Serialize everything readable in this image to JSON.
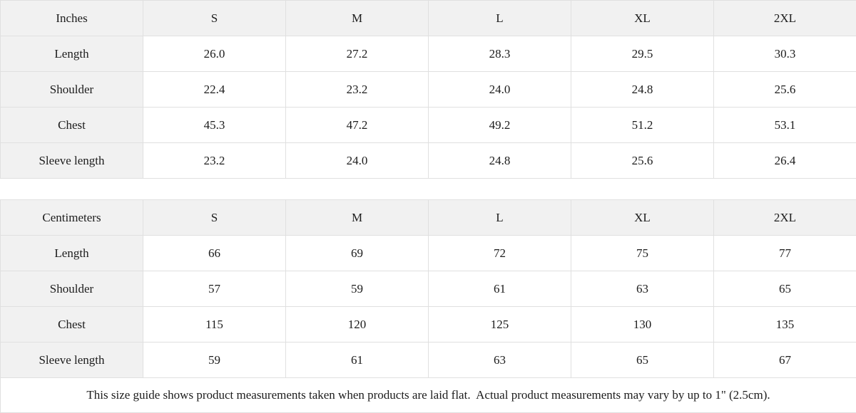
{
  "size_guide": {
    "sections": [
      {
        "unit_label": "Inches",
        "size_headers": [
          "S",
          "M",
          "L",
          "XL",
          "2XL"
        ],
        "rows": [
          {
            "label": "Length",
            "values": [
              "26.0",
              "27.2",
              "28.3",
              "29.5",
              "30.3"
            ]
          },
          {
            "label": "Shoulder",
            "values": [
              "22.4",
              "23.2",
              "24.0",
              "24.8",
              "25.6"
            ]
          },
          {
            "label": "Chest",
            "values": [
              "45.3",
              "47.2",
              "49.2",
              "51.2",
              "53.1"
            ]
          },
          {
            "label": "Sleeve length",
            "values": [
              "23.2",
              "24.0",
              "24.8",
              "25.6",
              "26.4"
            ]
          }
        ]
      },
      {
        "unit_label": "Centimeters",
        "size_headers": [
          "S",
          "M",
          "L",
          "XL",
          "2XL"
        ],
        "rows": [
          {
            "label": "Length",
            "values": [
              "66",
              "69",
              "72",
              "75",
              "77"
            ]
          },
          {
            "label": "Shoulder",
            "values": [
              "57",
              "59",
              "61",
              "63",
              "65"
            ]
          },
          {
            "label": "Chest",
            "values": [
              "115",
              "120",
              "125",
              "130",
              "135"
            ]
          },
          {
            "label": "Sleeve length",
            "values": [
              "59",
              "61",
              "63",
              "65",
              "67"
            ]
          }
        ]
      }
    ],
    "footnote": "This size guide shows product measurements taken when products are laid flat.  Actual product measurements may vary by up to 1\" (2.5cm).",
    "colors": {
      "header_bg": "#f1f1f1",
      "cell_bg": "#ffffff",
      "border": "#e0e0e0",
      "text": "#1c1c1c"
    }
  }
}
